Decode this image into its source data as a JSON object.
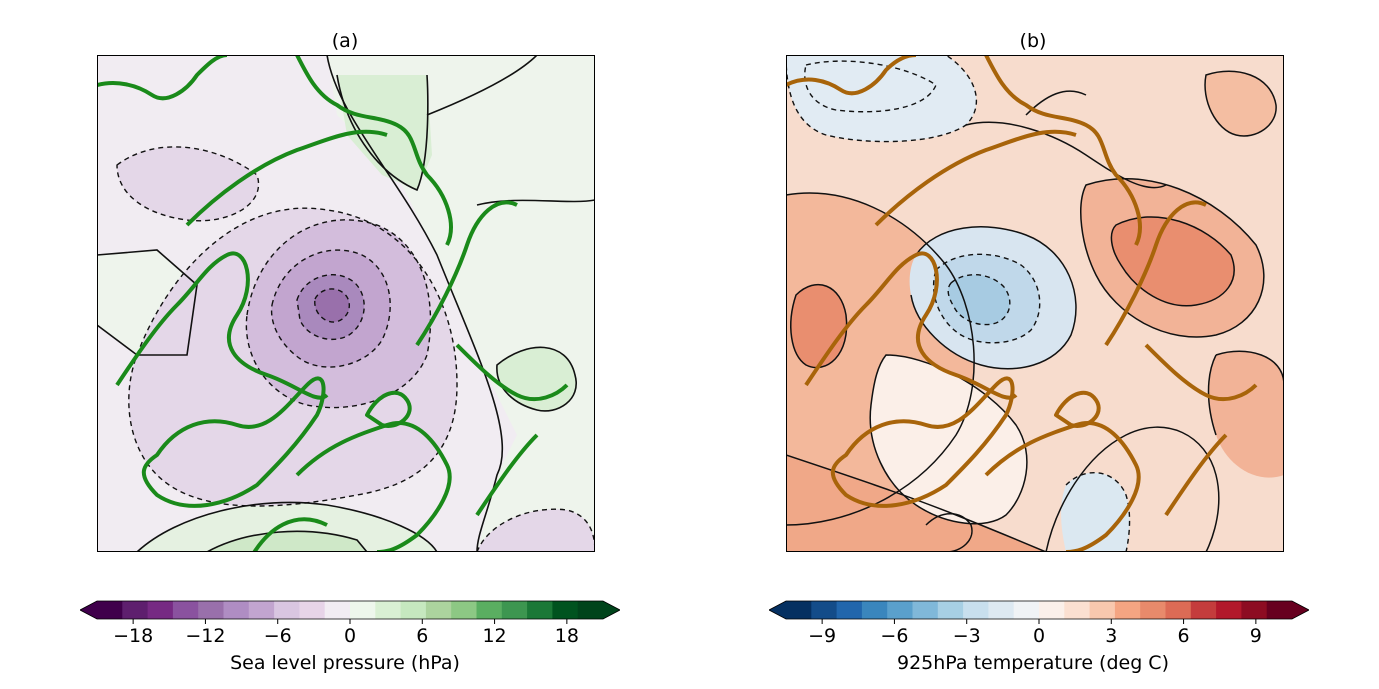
{
  "panels": [
    {
      "title": "(a)",
      "colorbar": {
        "label": "Sea level pressure (hPa)",
        "ticks": [
          "−18",
          "−12",
          "−6",
          "0",
          "6",
          "12",
          "18"
        ],
        "colors": [
          "#40004b",
          "#5e1f6e",
          "#762a83",
          "#8a529f",
          "#9970ab",
          "#af8dc3",
          "#c2a5cf",
          "#d9c6e1",
          "#e7d4e8",
          "#f2edf3",
          "#eef7ec",
          "#d9f0d3",
          "#c6e8bf",
          "#acd39e",
          "#8dc884",
          "#5aae61",
          "#3d9650",
          "#1b7837",
          "#00531f",
          "#00441b"
        ],
        "min": -21,
        "max": 21,
        "step": 2
      },
      "coastline_color": "#1a8a1a"
    },
    {
      "title": "(b)",
      "colorbar": {
        "label": "925hPa temperature (deg C)",
        "ticks": [
          "−9",
          "−6",
          "−3",
          "0",
          "3",
          "6",
          "9"
        ],
        "colors": [
          "#053061",
          "#134c89",
          "#2166ac",
          "#3a86bd",
          "#5aa0cc",
          "#80b8d9",
          "#a7cfe4",
          "#c8dfee",
          "#dde9f2",
          "#f0f3f6",
          "#fbf0ea",
          "#fbe0d1",
          "#f8c8ae",
          "#f4a582",
          "#e88a6b",
          "#dc6b55",
          "#c43c3c",
          "#b2182b",
          "#8d0c22",
          "#67001f"
        ],
        "min": -10.5,
        "max": 10.5,
        "step": 1
      },
      "coastline_color": "#a8640a"
    }
  ]
}
